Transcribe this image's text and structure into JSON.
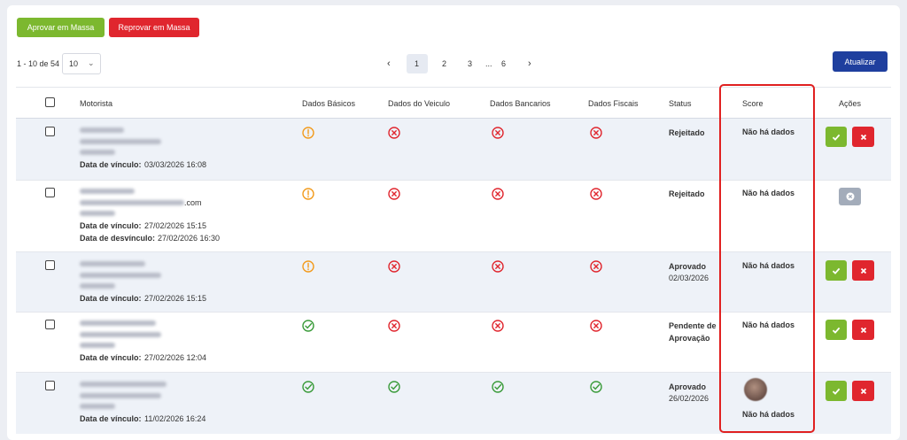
{
  "toolbar": {
    "approve_all": "Aprovar em Massa",
    "reject_all": "Reprovar em Massa",
    "refresh": "Atualizar"
  },
  "pagination": {
    "range": "1 - 10 de 54",
    "page_size": "10",
    "pages": [
      {
        "label": "1",
        "active": true
      },
      {
        "label": "2",
        "active": false
      },
      {
        "label": "3",
        "active": false
      },
      {
        "label": "...",
        "active": false
      },
      {
        "label": "6",
        "active": false
      }
    ]
  },
  "table": {
    "headers": [
      "Motorista",
      "Dados Básicos",
      "Dados do Veiculo",
      "Dados Bancarios",
      "Dados Fiscais",
      "Status",
      "Score",
      "Ações"
    ],
    "rows": [
      {
        "email_suffix": null,
        "dates": [
          {
            "label": "Data de vínculo:",
            "value": "03/03/2026 16:08"
          }
        ],
        "checks": [
          "warning",
          "error",
          "error",
          "error"
        ],
        "status": "Rejeitado",
        "status_date": null,
        "score": "Não há dados",
        "avatar": false,
        "actions": "approve-reject"
      },
      {
        "email_suffix": ".com",
        "dates": [
          {
            "label": "Data de vínculo:",
            "value": "27/02/2026 15:15"
          },
          {
            "label": "Data de desvínculo:",
            "value": "27/02/2026 16:30"
          }
        ],
        "checks": [
          "warning",
          "error",
          "error",
          "error"
        ],
        "status": "Rejeitado",
        "status_date": null,
        "score": "Não há dados",
        "avatar": false,
        "actions": "disabled"
      },
      {
        "email_suffix": null,
        "dates": [
          {
            "label": "Data de vínculo:",
            "value": "27/02/2026 15:15"
          }
        ],
        "checks": [
          "warning",
          "error",
          "error",
          "error"
        ],
        "status": "Aprovado",
        "status_date": "02/03/2026",
        "score": "Não há dados",
        "avatar": false,
        "actions": "approve-reject"
      },
      {
        "email_suffix": null,
        "dates": [
          {
            "label": "Data de vínculo:",
            "value": "27/02/2026 12:04"
          }
        ],
        "checks": [
          "ok",
          "error",
          "error",
          "error"
        ],
        "status": "Pendente de Aprovação",
        "status_date": null,
        "score": "Não há dados",
        "avatar": false,
        "actions": "approve-reject"
      },
      {
        "email_suffix": null,
        "dates": [
          {
            "label": "Data de vínculo:",
            "value": "11/02/2026 16:24"
          }
        ],
        "checks": [
          "ok",
          "ok",
          "ok",
          "ok"
        ],
        "status": "Aprovado",
        "status_date": "26/02/2026",
        "score": "Não há dados",
        "avatar": true,
        "actions": "approve-reject"
      }
    ]
  }
}
